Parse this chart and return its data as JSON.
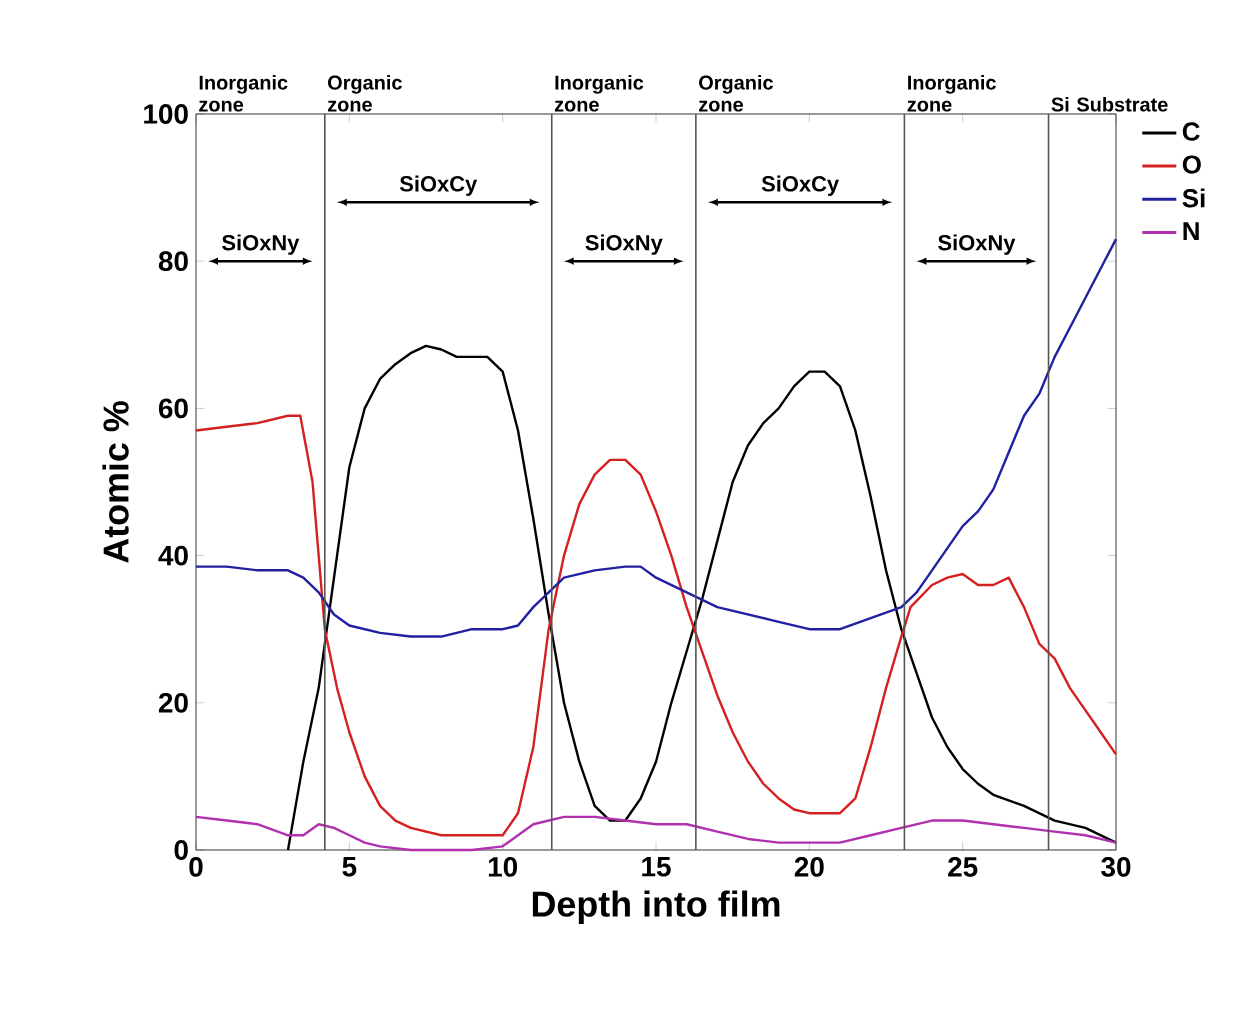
{
  "chart_data": {
    "type": "line",
    "xlabel": "Depth into film",
    "ylabel": "Atomic %",
    "xlim": [
      0,
      30
    ],
    "ylim": [
      0,
      100
    ],
    "xticks": [
      0,
      5,
      10,
      15,
      20,
      25,
      30
    ],
    "yticks": [
      0,
      20,
      40,
      60,
      80,
      100
    ],
    "legend": "right",
    "grid": false,
    "marker": "none",
    "line_style": "solid",
    "series": [
      {
        "name": "C",
        "color": "#000000",
        "x": [
          3,
          3.5,
          4,
          4.5,
          5,
          5.5,
          6,
          6.5,
          7,
          7.5,
          8,
          8.5,
          9,
          9.5,
          10,
          10.5,
          11,
          11.5,
          12,
          12.5,
          13,
          13.5,
          14,
          14.5,
          15,
          15.5,
          16,
          16.5,
          17,
          17.5,
          18,
          18.5,
          19,
          19.5,
          20,
          20.5,
          21,
          21.5,
          22,
          22.5,
          23,
          23.5,
          24,
          24.5,
          25,
          25.5,
          26,
          27,
          27.5,
          28,
          29,
          30
        ],
        "values": [
          0,
          12,
          22,
          37,
          52,
          60,
          64,
          66,
          67.5,
          68.5,
          68,
          67,
          67,
          67,
          65,
          57,
          45,
          32,
          20,
          12,
          6,
          4,
          4,
          7,
          12,
          20,
          27,
          34,
          42,
          50,
          55,
          58,
          60,
          63,
          65,
          65,
          63,
          57,
          48,
          38,
          30,
          24,
          18,
          14,
          11,
          9,
          7.5,
          6,
          5,
          4,
          3,
          1
        ]
      },
      {
        "name": "O",
        "color": "#d42020",
        "x": [
          0,
          1,
          2,
          3,
          3.4,
          3.8,
          4.2,
          4.6,
          5,
          5.5,
          6,
          6.5,
          7,
          8,
          9,
          10,
          10.5,
          11,
          11.5,
          12,
          12.5,
          13,
          13.5,
          14,
          14.5,
          15,
          15.5,
          16,
          16.5,
          17,
          17.5,
          18,
          18.5,
          19,
          19.5,
          20,
          21,
          21.5,
          22,
          22.5,
          23,
          23.3,
          24,
          24.5,
          25,
          25.5,
          26,
          26.5,
          27,
          27.5,
          28,
          28.5,
          29,
          29.5,
          30
        ],
        "values": [
          57,
          57.5,
          58,
          59,
          59,
          50,
          30,
          22,
          16,
          10,
          6,
          4,
          3,
          2,
          2,
          2,
          5,
          14,
          30,
          40,
          47,
          51,
          53,
          53,
          51,
          46,
          40,
          33,
          27,
          21,
          16,
          12,
          9,
          7,
          5.5,
          5,
          5,
          7,
          14,
          22,
          29,
          33,
          36,
          37,
          37.5,
          36,
          36,
          37,
          33,
          28,
          26,
          22,
          19,
          16,
          13
        ]
      },
      {
        "name": "Si",
        "color": "#2020a0",
        "x": [
          0,
          1,
          2,
          3,
          3.5,
          4,
          4.5,
          5,
          6,
          7,
          8,
          9,
          10,
          10.5,
          11,
          11.5,
          12,
          13,
          14,
          14.5,
          15,
          16,
          17,
          18,
          19,
          20,
          21,
          22,
          23,
          23.5,
          24,
          25,
          25.5,
          26,
          26.5,
          27,
          27.5,
          28,
          28.5,
          29,
          29.5,
          30
        ],
        "values": [
          38.5,
          38.5,
          38,
          38,
          37,
          35,
          32,
          30.5,
          29.5,
          29,
          29,
          30,
          30,
          30.5,
          33,
          35,
          37,
          38,
          38.5,
          38.5,
          37,
          35,
          33,
          32,
          31,
          30,
          30,
          31.5,
          33,
          35,
          38,
          44,
          46,
          49,
          54,
          59,
          62,
          67,
          71,
          75,
          79,
          83
        ]
      },
      {
        "name": "N",
        "color": "#b030b0",
        "x": [
          0,
          1,
          2,
          3,
          3.5,
          4,
          4.5,
          5,
          5.5,
          6,
          7,
          8,
          9,
          10,
          10.5,
          11,
          12,
          13,
          14,
          15,
          16,
          17,
          18,
          19,
          20,
          21,
          22,
          23,
          24,
          25,
          26,
          27,
          28,
          29,
          30
        ],
        "values": [
          4.5,
          4,
          3.5,
          2,
          2,
          3.5,
          3,
          2,
          1,
          0.5,
          0,
          0,
          0,
          0.5,
          2,
          3.5,
          4.5,
          4.5,
          4,
          3.5,
          3.5,
          2.5,
          1.5,
          1,
          1,
          1,
          2,
          3,
          4,
          4,
          3.5,
          3,
          2.5,
          2,
          1
        ]
      }
    ],
    "ref_lines": [
      {
        "axis": "x",
        "value": 4.2,
        "color": "#555555"
      },
      {
        "axis": "x",
        "value": 11.6,
        "color": "#555555"
      },
      {
        "axis": "x",
        "value": 16.3,
        "color": "#555555"
      },
      {
        "axis": "x",
        "value": 23.1,
        "color": "#555555"
      },
      {
        "axis": "x",
        "value": 27.8,
        "color": "#555555"
      }
    ],
    "annotations": [
      "Inorganic zone",
      "Organic zone",
      "Inorganic zone",
      "Organic zone",
      "Inorganic zone",
      "Si Substrate",
      "SiOxNy",
      "SiOxCy",
      "SiOxNy",
      "SiOxCy",
      "SiOxNy"
    ]
  }
}
